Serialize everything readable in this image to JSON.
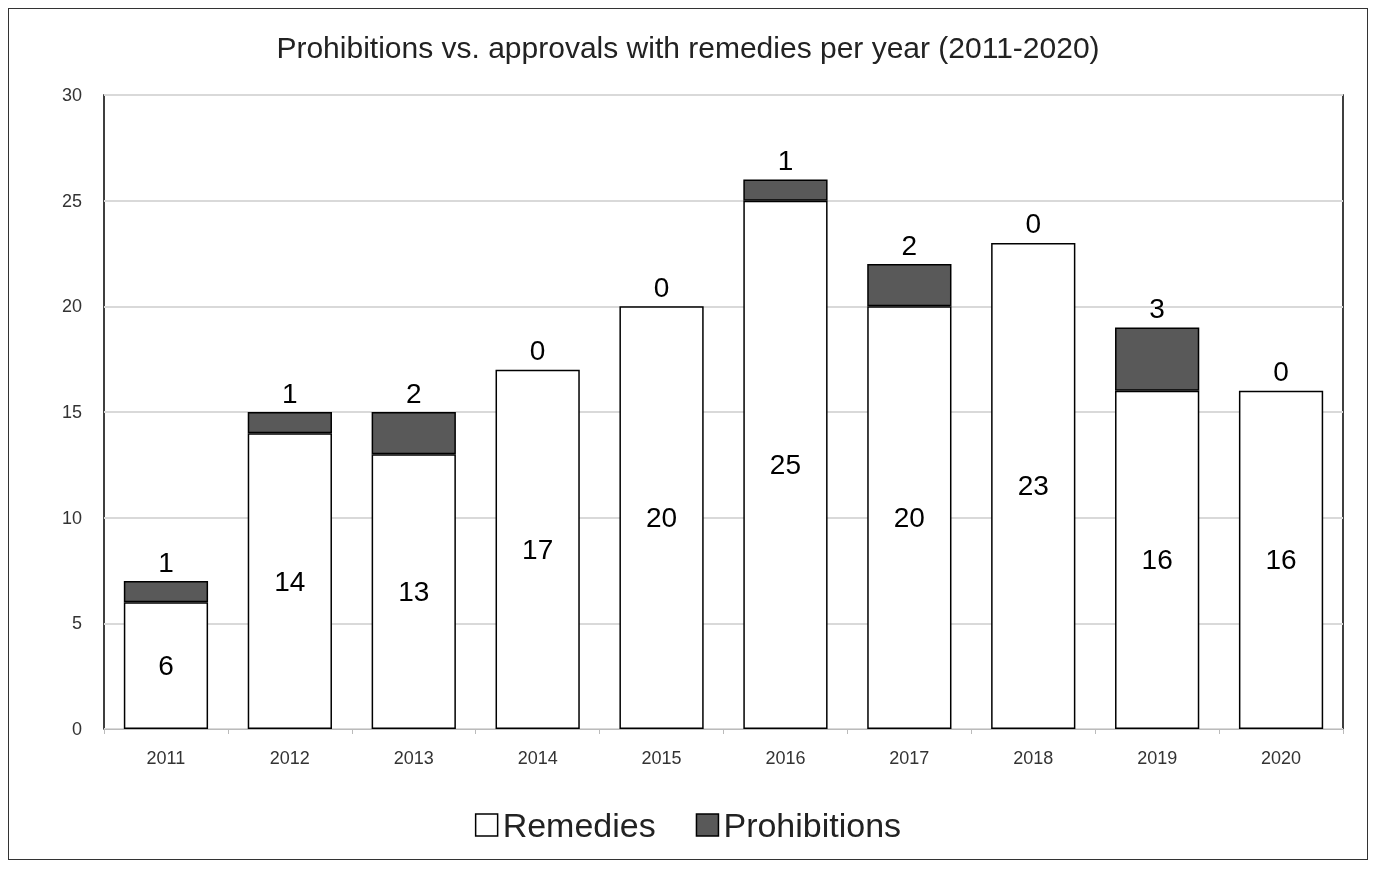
{
  "chart_data": {
    "type": "bar",
    "title": "Prohibitions vs. approvals with remedies per year (2011-2020)",
    "categories": [
      "2011",
      "2012",
      "2013",
      "2014",
      "2015",
      "2016",
      "2017",
      "2018",
      "2019",
      "2020"
    ],
    "stacked": true,
    "series": [
      {
        "name": "Remedies",
        "color": "#ffffff",
        "values": [
          6,
          14,
          13,
          17,
          20,
          25,
          20,
          23,
          16,
          16
        ]
      },
      {
        "name": "Prohibitions",
        "color": "#595959",
        "values": [
          1,
          1,
          2,
          0,
          0,
          1,
          2,
          0,
          3,
          0
        ]
      }
    ],
    "ylim": [
      0,
      30
    ],
    "yticks": [
      0,
      5,
      10,
      15,
      20,
      25,
      30
    ],
    "grid": "y",
    "legend": "bottom",
    "data_labels": true
  }
}
